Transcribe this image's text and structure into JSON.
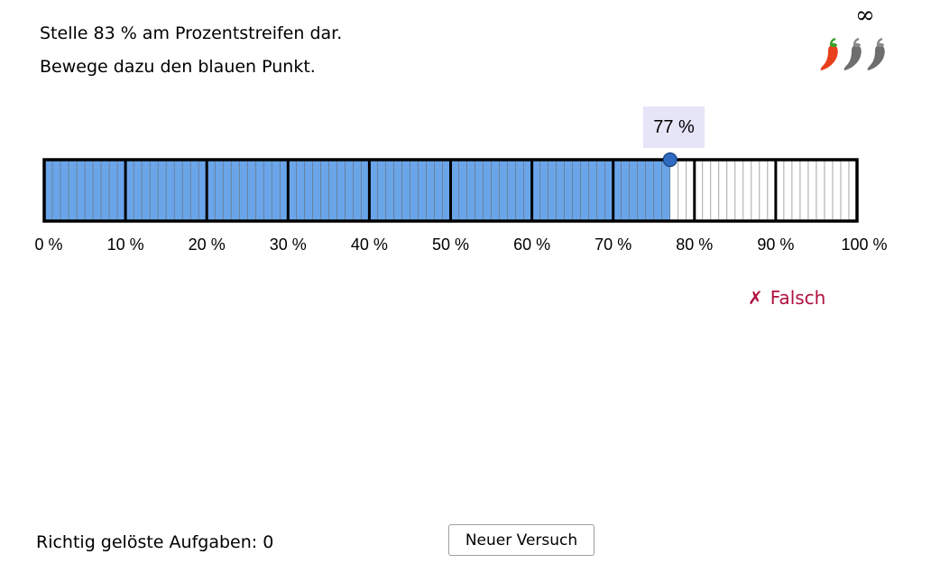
{
  "task": {
    "line1": "Stelle 83 % am Prozentstreifen dar.",
    "line2": "Bewege dazu den blauen Punkt."
  },
  "difficulty": {
    "symbol": "∞",
    "level": 1,
    "max": 3,
    "active_color": "#e8401c",
    "inactive_color": "#6e6e6e"
  },
  "strip": {
    "value_percent": 77,
    "value_label": "77 %",
    "fill_color": "#6aa5ea",
    "handle_color": "#2f6bc0",
    "tick_labels": [
      "0 %",
      "10 %",
      "20 %",
      "30 %",
      "40 %",
      "50 %",
      "60 %",
      "70 %",
      "80 %",
      "90 %",
      "100 %"
    ]
  },
  "feedback": {
    "mark": "✗",
    "text": "Falsch",
    "color": "#b0103c"
  },
  "footer": {
    "score_label": "Richtig gelöste Aufgaben: 0",
    "new_try_button": "Neuer Versuch"
  }
}
